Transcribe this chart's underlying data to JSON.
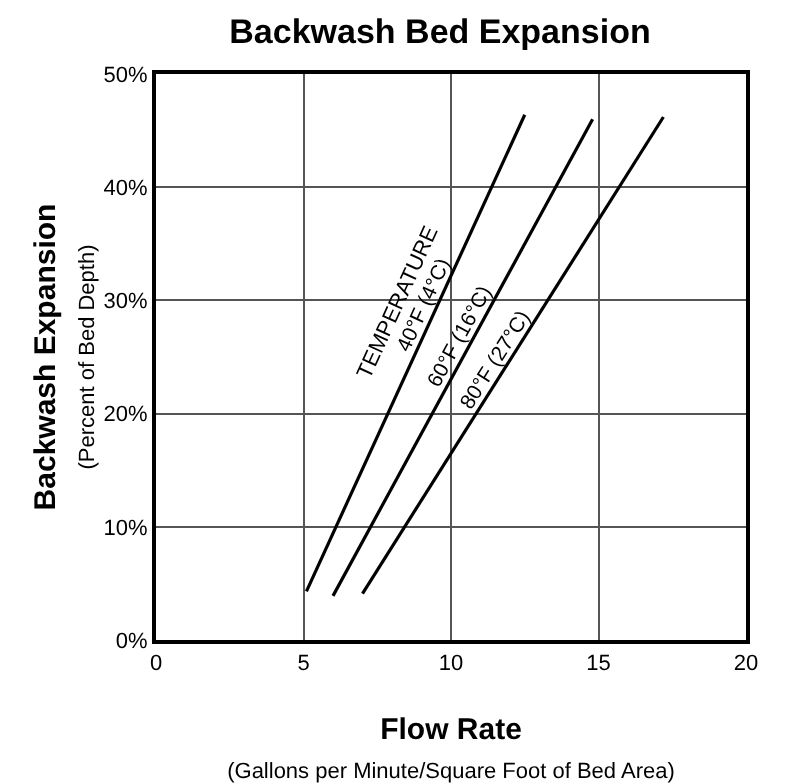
{
  "chart_data": {
    "type": "line",
    "title": "Backwash Bed Expansion",
    "xlabel": "Flow Rate\n(Gallons per Minute/Square Foot of Bed Area)",
    "ylabel": "Backwash Expansion\n(Percent of Bed Depth)",
    "series": [
      {
        "name": "40°F (4°C)",
        "color": "#000000",
        "x": [
          5.1,
          12.5
        ],
        "values": [
          4.3,
          46.4
        ]
      },
      {
        "name": "60°F (16°C)",
        "color": "#000000",
        "x": [
          6.0,
          14.8
        ],
        "values": [
          3.9,
          46
        ]
      },
      {
        "name": "80°F (27°C)",
        "color": "#000000",
        "x": [
          7.0,
          17.2
        ],
        "values": [
          4.1,
          46.2
        ]
      }
    ],
    "annotations": [
      "TEMPERATURE"
    ],
    "xlim": [
      0,
      20
    ],
    "xticks": [
      0,
      5,
      10,
      15,
      20
    ],
    "ylim": [
      0,
      50
    ],
    "yticks": [
      {
        "value": 0,
        "label": "0%"
      },
      {
        "value": 10,
        "label": "10%"
      },
      {
        "value": 20,
        "label": "20%"
      },
      {
        "value": 30,
        "label": "30%"
      },
      {
        "value": 40,
        "label": "40%"
      },
      {
        "value": 50,
        "label": "50%"
      }
    ],
    "grid": true,
    "legend": false,
    "marker": "none",
    "line_style": "solid"
  }
}
